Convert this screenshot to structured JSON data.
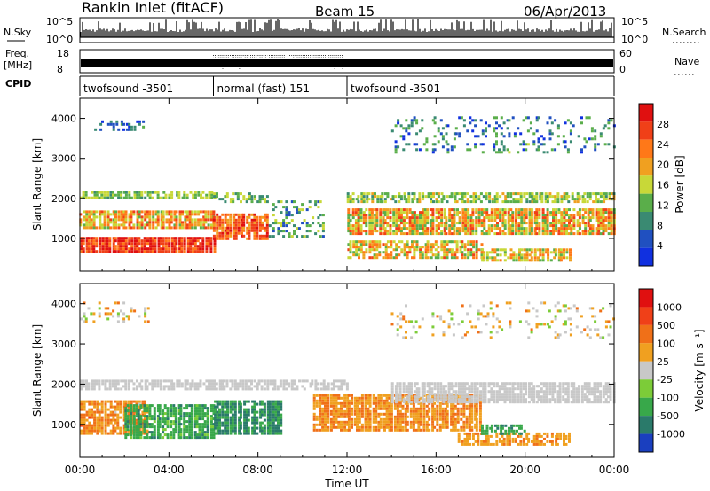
{
  "header": {
    "station": "Rankin Inlet (fitACF)",
    "beam": "Beam 15",
    "date": "06/Apr/2013"
  },
  "status_panels": {
    "nsky_label": "N.Sky",
    "nsky_ticks": [
      "10^5",
      "10^0"
    ],
    "nsearch_label": "N.Search",
    "nsearch_ticks": [
      "10^5",
      "10^0"
    ],
    "freq_label": "Freq.",
    "freq_unit": "[MHz]",
    "freq_ticks": [
      "18",
      "8"
    ],
    "nave_label": "Nave",
    "nave_ticks": [
      "60",
      "0"
    ],
    "cpid_label": "CPID",
    "cpid_segments": [
      {
        "start_h": 0,
        "end_h": 6,
        "name": "twofsound -3501"
      },
      {
        "start_h": 6,
        "end_h": 12,
        "name": "normal (fast) 151"
      },
      {
        "start_h": 12,
        "end_h": 24,
        "name": "twofsound -3501"
      }
    ]
  },
  "chart_data": [
    {
      "type": "heatmap",
      "title": "Power",
      "xlabel": "",
      "ylabel": "Slant Range [km]",
      "xlim_hours": [
        0,
        24
      ],
      "ylim_km": [
        180,
        4500
      ],
      "x_ticks": [
        "00:00",
        "04:00",
        "08:00",
        "12:00",
        "16:00",
        "20:00",
        "00:00"
      ],
      "y_ticks": [
        1000,
        2000,
        3000,
        4000
      ],
      "colorbar": {
        "label": "Power [dB]",
        "tick_labels": [
          "4",
          "8",
          "12",
          "16",
          "20",
          "24",
          "28"
        ],
        "colors": [
          "#1030e0",
          "#2050c0",
          "#3a8a72",
          "#5aae4a",
          "#c8d838",
          "#f0a020",
          "#ff7818",
          "#f04018",
          "#e01010"
        ]
      },
      "scatter_bands": [
        {
          "start_h": 0.0,
          "end_h": 6.0,
          "center_km": 850,
          "width_km": 380,
          "density": 0.95,
          "low": 0.72,
          "high": 0.98
        },
        {
          "start_h": 0.0,
          "end_h": 6.0,
          "center_km": 1500,
          "width_km": 400,
          "density": 0.85,
          "low": 0.4,
          "high": 0.85
        },
        {
          "start_h": 0.0,
          "end_h": 6.0,
          "center_km": 2100,
          "width_km": 160,
          "density": 0.75,
          "low": 0.3,
          "high": 0.55
        },
        {
          "start_h": 6.0,
          "end_h": 8.5,
          "center_km": 1300,
          "width_km": 650,
          "density": 0.85,
          "low": 0.6,
          "high": 0.95
        },
        {
          "start_h": 6.0,
          "end_h": 8.5,
          "center_km": 2050,
          "width_km": 200,
          "density": 0.55,
          "low": 0.25,
          "high": 0.55
        },
        {
          "start_h": 0.5,
          "end_h": 3.0,
          "center_km": 3850,
          "width_km": 200,
          "density": 0.35,
          "low": 0.05,
          "high": 0.35
        },
        {
          "start_h": 8.5,
          "end_h": 11.0,
          "center_km": 1500,
          "width_km": 900,
          "density": 0.35,
          "low": 0.15,
          "high": 0.5
        },
        {
          "start_h": 12.0,
          "end_h": 24.0,
          "center_km": 1450,
          "width_km": 600,
          "density": 0.85,
          "low": 0.35,
          "high": 0.85
        },
        {
          "start_h": 12.0,
          "end_h": 24.0,
          "center_km": 2050,
          "width_km": 200,
          "density": 0.7,
          "low": 0.3,
          "high": 0.6
        },
        {
          "start_h": 12.0,
          "end_h": 18.0,
          "center_km": 750,
          "width_km": 400,
          "density": 0.65,
          "low": 0.35,
          "high": 0.8
        },
        {
          "start_h": 18.0,
          "end_h": 22.0,
          "center_km": 600,
          "width_km": 300,
          "density": 0.7,
          "low": 0.4,
          "high": 0.75
        },
        {
          "start_h": 14.0,
          "end_h": 24.0,
          "center_km": 3600,
          "width_km": 900,
          "density": 0.2,
          "low": 0.05,
          "high": 0.45
        }
      ]
    },
    {
      "type": "heatmap",
      "title": "Velocity",
      "xlabel": "Time UT",
      "ylabel": "Slant Range [km]",
      "xlim_hours": [
        0,
        24
      ],
      "ylim_km": [
        180,
        4500
      ],
      "x_ticks": [
        "00:00",
        "04:00",
        "08:00",
        "12:00",
        "16:00",
        "20:00",
        "00:00"
      ],
      "y_ticks": [
        1000,
        2000,
        3000,
        4000
      ],
      "colorbar": {
        "label": "Velocity [m s⁻¹]",
        "tick_labels": [
          "1000",
          "500",
          "100",
          "25",
          "-25",
          "-100",
          "-500",
          "-1000"
        ],
        "colors": [
          "#1a3fbf",
          "#2a7a6a",
          "#38a84a",
          "#7ccc38",
          "#c8c8c8",
          "#f0a020",
          "#f07018",
          "#f04018",
          "#e01010"
        ]
      },
      "scatter_bands": [
        {
          "start_h": 0.0,
          "end_h": 3.0,
          "center_km": 1200,
          "width_km": 800,
          "density": 0.85,
          "low": 0.55,
          "high": 0.78
        },
        {
          "start_h": 2.0,
          "end_h": 6.0,
          "center_km": 1100,
          "width_km": 800,
          "density": 0.85,
          "low": 0.2,
          "high": 0.35
        },
        {
          "start_h": 6.0,
          "end_h": 9.0,
          "center_km": 1200,
          "width_km": 800,
          "density": 0.85,
          "low": 0.15,
          "high": 0.28
        },
        {
          "start_h": 0.0,
          "end_h": 12.0,
          "center_km": 2000,
          "width_km": 220,
          "density": 0.75,
          "low": 0.45,
          "high": 0.5
        },
        {
          "start_h": 10.5,
          "end_h": 18.0,
          "center_km": 1300,
          "width_km": 900,
          "density": 0.85,
          "low": 0.6,
          "high": 0.72
        },
        {
          "start_h": 14.0,
          "end_h": 24.0,
          "center_km": 1800,
          "width_km": 500,
          "density": 0.85,
          "low": 0.45,
          "high": 0.5
        },
        {
          "start_h": 17.0,
          "end_h": 22.0,
          "center_km": 650,
          "width_km": 300,
          "density": 0.7,
          "low": 0.58,
          "high": 0.7
        },
        {
          "start_h": 18.0,
          "end_h": 20.0,
          "center_km": 900,
          "width_km": 200,
          "density": 0.6,
          "low": 0.2,
          "high": 0.3
        },
        {
          "start_h": 0.0,
          "end_h": 3.0,
          "center_km": 3800,
          "width_km": 500,
          "density": 0.25,
          "low": 0.4,
          "high": 0.7
        },
        {
          "start_h": 14.0,
          "end_h": 24.0,
          "center_km": 3600,
          "width_km": 900,
          "density": 0.15,
          "low": 0.4,
          "high": 0.7
        }
      ]
    }
  ]
}
